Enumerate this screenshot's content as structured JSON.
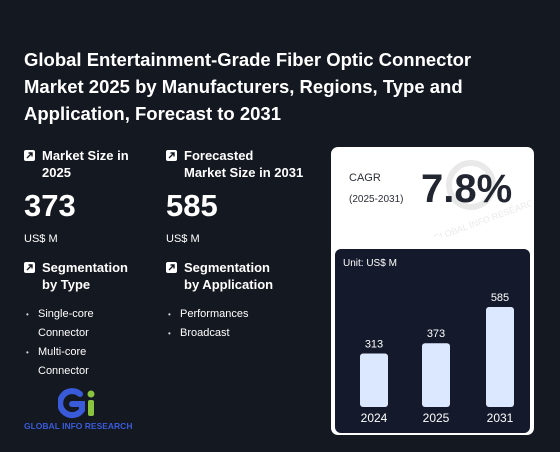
{
  "title": "Global Entertainment-Grade Fiber Optic Connector Market 2025 by Manufacturers, Regions, Type and Application, Forecast to 2031",
  "market_size": {
    "label_line1": "Market Size in",
    "label_line2": "2025",
    "value": "373",
    "unit": "US$ M"
  },
  "forecast": {
    "label_line1": "Forecasted",
    "label_line2": "Market Size in 2031",
    "value": "585",
    "unit": "US$ M"
  },
  "seg_type": {
    "label_line1": "Segmentation",
    "label_line2": "by Type",
    "items": [
      "Single-core",
      "Connector",
      "Multi-core",
      "Connector"
    ]
  },
  "seg_app": {
    "label_line1": "Segmentation",
    "label_line2": "by Application",
    "items": [
      "Performances",
      "Broadcast"
    ]
  },
  "cagr": {
    "label": "CAGR",
    "years": "(2025-2031)",
    "value": "7.8%"
  },
  "watermark_text": "GLOBAL INFO RESEARCH",
  "logo_text": "GLOBAL INFO RESEARCH",
  "colors": {
    "background": "#141820",
    "bar": "#dbe8ff",
    "panel": "#141a2c",
    "logo_blue": "#3a5bd9",
    "logo_green": "#8ac43f"
  },
  "chart_data": {
    "type": "bar",
    "unit_label": "Unit: US$ M",
    "categories": [
      "2024",
      "2025",
      "2031"
    ],
    "values": [
      313,
      373,
      585
    ]
  }
}
